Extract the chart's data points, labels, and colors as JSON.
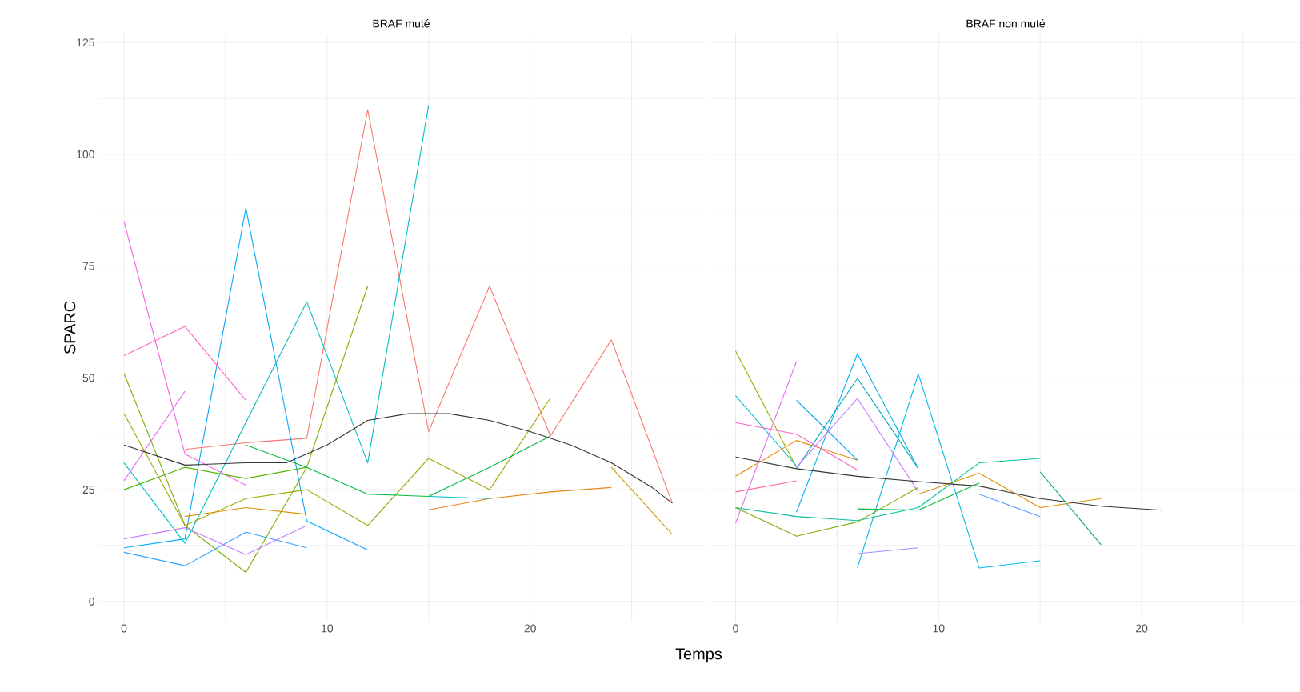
{
  "chart_data": [
    {
      "type": "line",
      "title": "BRAF muté",
      "ylabel": "SPARC",
      "xlabel": "Temps",
      "xlim": [
        -1.3,
        28.6
      ],
      "ylim": [
        -4.5,
        127
      ],
      "xticks": [
        0,
        {
          "value": 5,
          "label": null
        },
        10,
        {
          "value": 15,
          "label": null
        },
        20,
        {
          "value": 25,
          "label": null
        }
      ],
      "yticks": [
        0,
        {
          "value": 12.5,
          "label": null
        },
        25,
        {
          "value": 37.5,
          "label": null
        },
        50,
        {
          "value": 62.5,
          "label": null
        },
        75,
        {
          "value": 87.5,
          "label": null
        },
        100,
        {
          "value": 112.5,
          "label": null
        },
        125
      ],
      "grid": true,
      "series": [
        {
          "color": "#F8766D",
          "x": [
            3,
            6,
            9,
            12,
            15,
            18,
            21,
            24,
            27
          ],
          "values": [
            34,
            35.5,
            36.5,
            110,
            38,
            70.5,
            37,
            58.5,
            22
          ]
        },
        {
          "color": "#00BFC4",
          "x": [
            0,
            3,
            6,
            9,
            12,
            15
          ],
          "values": [
            31,
            13,
            40,
            67,
            31,
            111
          ]
        },
        {
          "color": "#00A9FF",
          "x": [
            0,
            3,
            6,
            9,
            12
          ],
          "values": [
            12,
            14,
            88,
            18,
            11.5
          ]
        },
        {
          "color": "#7CAE00",
          "x": [
            0,
            3,
            6,
            9,
            12
          ],
          "values": [
            51,
            17,
            6.5,
            30,
            70.5
          ]
        },
        {
          "color": "#FF61C3",
          "x": [
            0,
            3,
            6
          ],
          "values": [
            55,
            61.5,
            45
          ]
        },
        {
          "color": "#E76BF3",
          "x": [
            0,
            3
          ],
          "values": [
            27,
            47
          ]
        },
        {
          "color": "#F564E3",
          "x": [
            0,
            3,
            6
          ],
          "values": [
            85,
            33,
            26
          ]
        },
        {
          "color": "#A3A500",
          "x": [
            0,
            3,
            6,
            9,
            12,
            15,
            18,
            21
          ],
          "values": [
            42,
            17,
            23,
            25,
            17,
            32,
            25,
            45.5
          ]
        },
        {
          "color": "#00BA38",
          "x": [
            6,
            9,
            12,
            15,
            18,
            21
          ],
          "values": [
            35,
            30,
            24,
            23.5,
            30,
            37
          ]
        },
        {
          "color": "#E68613",
          "x": [
            15,
            18,
            21,
            24
          ],
          "values": [
            20.5,
            23,
            24.5,
            25.5
          ]
        },
        {
          "color": "#C49A00",
          "x": [
            24,
            27
          ],
          "values": [
            30,
            15
          ]
        },
        {
          "color": "#35A2FF",
          "x": [
            0,
            3,
            6,
            9
          ],
          "values": [
            11,
            8,
            15.5,
            12
          ]
        },
        {
          "color": "#C77CFF",
          "x": [
            0,
            3,
            6,
            9
          ],
          "values": [
            14,
            16.5,
            10.5,
            17
          ]
        },
        {
          "color": "#D89000",
          "x": [
            3,
            6,
            9
          ],
          "values": [
            19,
            21,
            19.5
          ]
        },
        {
          "color": "#53B400",
          "x": [
            0,
            3,
            6,
            9
          ],
          "values": [
            25,
            30,
            27.5,
            30
          ]
        },
        {
          "color": "#00BCD8",
          "x": [
            15,
            18
          ],
          "values": [
            23.5,
            23
          ]
        },
        {
          "color": "#333333",
          "x": [
            0,
            3,
            6,
            8,
            10,
            12,
            14,
            16,
            18,
            20,
            22,
            24,
            26,
            27
          ],
          "values": [
            35,
            30.5,
            31,
            31,
            35,
            40.5,
            42,
            42,
            40.5,
            38,
            35,
            31,
            25.5,
            22
          ]
        }
      ]
    },
    {
      "type": "line",
      "title": "BRAF non muté",
      "xlim": [
        -1.2,
        27.8
      ],
      "ylim": [
        -4.5,
        127
      ],
      "xticks": [
        0,
        {
          "value": 5,
          "label": null
        },
        10,
        {
          "value": 15,
          "label": null
        },
        20,
        {
          "value": 25,
          "label": null
        }
      ],
      "yticks": [
        0,
        {
          "value": 12.5,
          "label": null
        },
        25,
        {
          "value": 37.5,
          "label": null
        },
        50,
        {
          "value": 62.5,
          "label": null
        },
        75,
        {
          "value": 87.5,
          "label": null
        },
        100,
        {
          "value": 112.5,
          "label": null
        },
        125
      ],
      "grid": true,
      "tick_labels": "x",
      "series": [
        {
          "color": "#A3A500",
          "x": [
            0,
            3
          ],
          "values": [
            56,
            30
          ]
        },
        {
          "color": "#E58700",
          "x": [
            0,
            3,
            6
          ],
          "values": [
            28,
            36,
            31.6
          ]
        },
        {
          "color": "#E76BF3",
          "x": [
            0,
            3
          ],
          "values": [
            17.5,
            53.7
          ]
        },
        {
          "color": "#00BFC4",
          "x": [
            0,
            3
          ],
          "values": [
            46,
            30.3
          ]
        },
        {
          "color": "#00A5FF",
          "x": [
            3,
            6
          ],
          "values": [
            45,
            31.6
          ]
        },
        {
          "color": "#00B0F6",
          "x": [
            3,
            6,
            9
          ],
          "values": [
            20,
            55.4,
            29.7
          ]
        },
        {
          "color": "#00A9B8",
          "x": [
            3,
            6,
            9
          ],
          "values": [
            29.7,
            49.9,
            29.7
          ]
        },
        {
          "color": "#FF61C3",
          "x": [
            0,
            3,
            6
          ],
          "values": [
            40,
            37.4,
            29.4
          ]
        },
        {
          "color": "#C77CFF",
          "x": [
            3,
            6,
            9
          ],
          "values": [
            30,
            45.4,
            24.5
          ]
        },
        {
          "color": "#00B8E7",
          "x": [
            6,
            9,
            12,
            15
          ],
          "values": [
            7.5,
            50.9,
            7.5,
            9.1
          ]
        },
        {
          "color": "#00C19A",
          "x": [
            0,
            3,
            6,
            9,
            12,
            15
          ],
          "values": [
            21,
            19,
            18.1,
            21,
            31,
            32
          ]
        },
        {
          "color": "#7CAE00",
          "x": [
            0,
            3,
            6,
            9
          ],
          "values": [
            21,
            14.6,
            17.8,
            25.5
          ]
        },
        {
          "color": "#00BA38",
          "x": [
            6,
            9,
            12
          ],
          "values": [
            20.7,
            20.4,
            26.5
          ]
        },
        {
          "color": "#D89000",
          "x": [
            9,
            12,
            15,
            18
          ],
          "values": [
            24,
            28.7,
            21,
            23
          ]
        },
        {
          "color": "#00A08A",
          "x": [
            15,
            18
          ],
          "values": [
            29,
            12.7
          ]
        },
        {
          "color": "#619CFF",
          "x": [
            12,
            15
          ],
          "values": [
            24,
            19
          ]
        },
        {
          "color": "#9590FF",
          "x": [
            6,
            9
          ],
          "values": [
            10.7,
            12
          ]
        },
        {
          "color": "#FF6C91",
          "x": [
            0,
            3
          ],
          "values": [
            24.5,
            27
          ]
        },
        {
          "color": "#333333",
          "x": [
            0,
            3,
            6,
            9,
            12,
            15,
            18,
            21
          ],
          "values": [
            32.3,
            29.7,
            28,
            26.8,
            25.8,
            23,
            21.3,
            20.4
          ]
        }
      ]
    }
  ]
}
